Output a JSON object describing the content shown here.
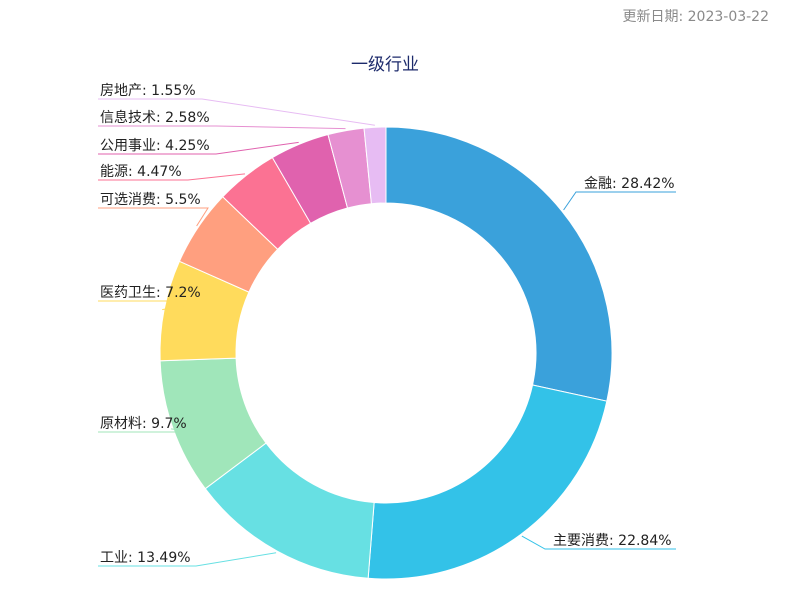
{
  "header": {
    "update_date": "更新日期: 2023-03-22"
  },
  "chart_data": {
    "type": "pie",
    "title": "一级行业",
    "series": [
      {
        "name": "金融",
        "value": 28.42,
        "color": "#3aa1db",
        "label": "金融: 28.42%"
      },
      {
        "name": "主要消费",
        "value": 22.84,
        "color": "#33c2e8",
        "label": "主要消费: 22.84%"
      },
      {
        "name": "工业",
        "value": 13.49,
        "color": "#67e0e3",
        "label": "工业: 13.49%"
      },
      {
        "name": "原材料",
        "value": 9.7,
        "color": "#a0e6ba",
        "label": "原材料: 9.7%"
      },
      {
        "name": "医药卫生",
        "value": 7.2,
        "color": "#ffdb5c",
        "label": "医药卫生: 7.2%"
      },
      {
        "name": "可选消费",
        "value": 5.5,
        "color": "#ff9f7f",
        "label": "可选消费: 5.5%"
      },
      {
        "name": "能源",
        "value": 4.47,
        "color": "#fb7293",
        "label": "能源: 4.47%"
      },
      {
        "name": "公用事业",
        "value": 4.25,
        "color": "#e062ae",
        "label": "公用事业: 4.25%"
      },
      {
        "name": "信息技术",
        "value": 2.58,
        "color": "#e690d1",
        "label": "信息技术: 2.58%"
      },
      {
        "name": "房地产",
        "value": 1.55,
        "color": "#e7bcf3",
        "label": "房地产: 1.55%"
      }
    ]
  }
}
